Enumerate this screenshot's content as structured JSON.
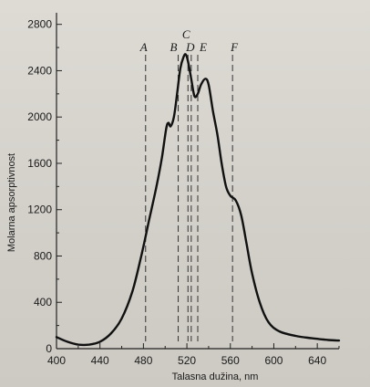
{
  "chart_data": {
    "type": "line",
    "xlabel": "Talasna dužina, nm",
    "ylabel": "Molarna apsorptivnost",
    "xlim": [
      400,
      660
    ],
    "ylim": [
      0,
      2900
    ],
    "x_ticks": [
      400,
      440,
      480,
      520,
      560,
      600,
      640
    ],
    "y_ticks": [
      0,
      400,
      800,
      1200,
      1600,
      2000,
      2400,
      2800
    ],
    "grid": false,
    "series": [
      {
        "points": [
          [
            400,
            100
          ],
          [
            410,
            60
          ],
          [
            420,
            35
          ],
          [
            430,
            35
          ],
          [
            440,
            60
          ],
          [
            450,
            130
          ],
          [
            460,
            260
          ],
          [
            470,
            500
          ],
          [
            478,
            800
          ],
          [
            485,
            1100
          ],
          [
            492,
            1400
          ],
          [
            497,
            1650
          ],
          [
            501,
            1900
          ],
          [
            503,
            1950
          ],
          [
            505,
            1920
          ],
          [
            508,
            2000
          ],
          [
            511,
            2200
          ],
          [
            514,
            2420
          ],
          [
            517,
            2520
          ],
          [
            519,
            2540
          ],
          [
            521,
            2480
          ],
          [
            524,
            2330
          ],
          [
            527,
            2180
          ],
          [
            530,
            2200
          ],
          [
            533,
            2280
          ],
          [
            537,
            2330
          ],
          [
            540,
            2280
          ],
          [
            544,
            2050
          ],
          [
            548,
            1850
          ],
          [
            552,
            1600
          ],
          [
            556,
            1400
          ],
          [
            560,
            1320
          ],
          [
            565,
            1280
          ],
          [
            570,
            1150
          ],
          [
            575,
            900
          ],
          [
            580,
            650
          ],
          [
            587,
            400
          ],
          [
            595,
            230
          ],
          [
            605,
            150
          ],
          [
            620,
            110
          ],
          [
            635,
            90
          ],
          [
            650,
            75
          ],
          [
            660,
            70
          ]
        ]
      }
    ],
    "markers": [
      {
        "label": "A",
        "x": 482
      },
      {
        "label": "B",
        "x": 512
      },
      {
        "label": "C",
        "x": 521
      },
      {
        "label": "D",
        "x": 524
      },
      {
        "label": "E",
        "x": 530
      },
      {
        "label": "F",
        "x": 562
      }
    ],
    "colors": {
      "line": "#111111",
      "axis": "#222222",
      "marker": "#333333"
    }
  }
}
